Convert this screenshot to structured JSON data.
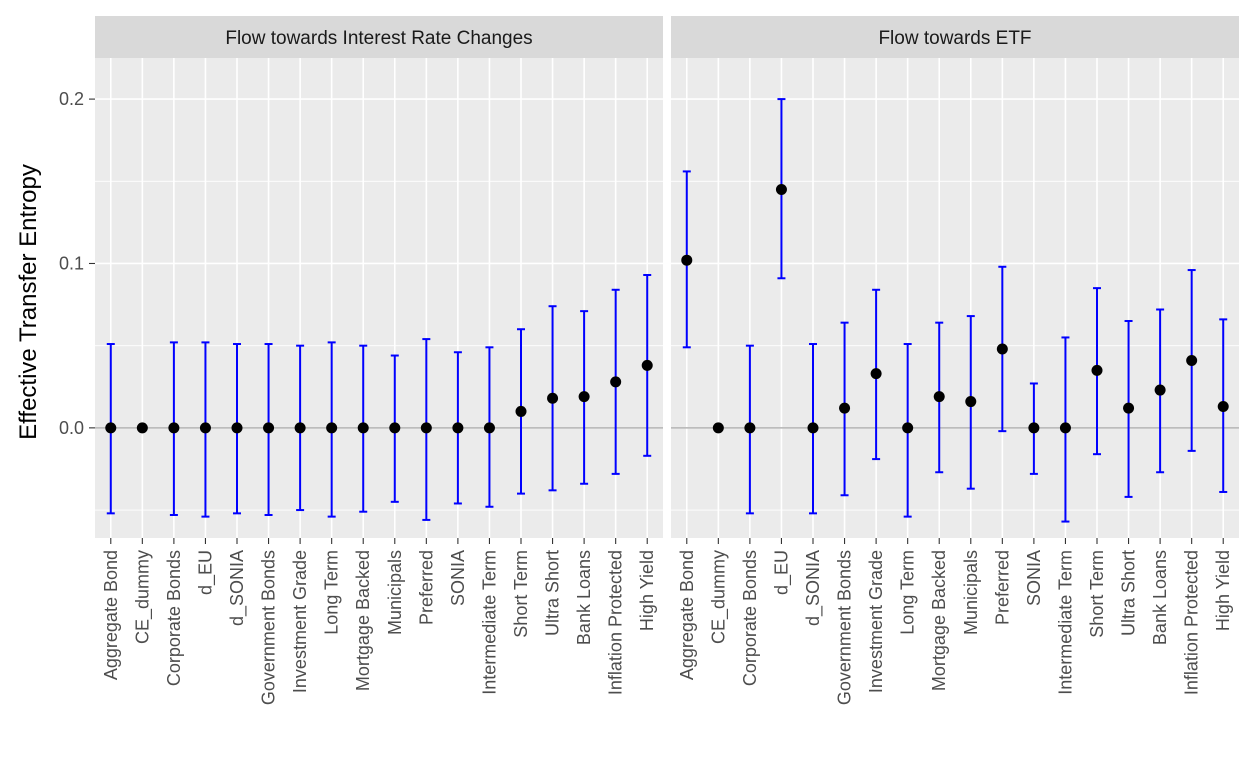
{
  "chart_data": {
    "type": "scatter",
    "ylabel": "Effective Transfer Entropy",
    "xlabel": "",
    "ylim": [
      -0.067,
      0.225
    ],
    "yticks": [
      0.0,
      0.1,
      0.2
    ],
    "ytick_labels": [
      "0.0",
      "0.1",
      "0.2"
    ],
    "grid": true,
    "colors": {
      "point": "#000000",
      "errorbar": "#0000ff",
      "zero_line": "#b3b3b3",
      "panel_bg": "#ebebeb",
      "strip_bg": "#d9d9d9"
    },
    "panels": [
      {
        "title": "Flow towards Interest Rate Changes",
        "categories": [
          "Aggregate Bond",
          "CE_dummy",
          "Corporate Bonds",
          "d_EU",
          "d_SONIA",
          "Government Bonds",
          "Investment Grade",
          "Long Term",
          "Mortgage Backed",
          "Municipals",
          "Preferred",
          "SONIA",
          "Intermediate Term",
          "Short Term",
          "Ultra Short",
          "Bank Loans",
          "Inflation Protected",
          "High Yield"
        ],
        "values": [
          0.0,
          0.0,
          0.0,
          0.0,
          0.0,
          0.0,
          0.0,
          0.0,
          0.0,
          0.0,
          0.0,
          0.0,
          0.0,
          0.01,
          0.018,
          0.019,
          0.028,
          0.038
        ],
        "lower": [
          -0.052,
          0.0,
          -0.053,
          -0.054,
          -0.052,
          -0.053,
          -0.05,
          -0.054,
          -0.051,
          -0.045,
          -0.056,
          -0.046,
          -0.048,
          -0.04,
          -0.038,
          -0.034,
          -0.028,
          -0.017
        ],
        "upper": [
          0.051,
          0.0,
          0.052,
          0.052,
          0.051,
          0.051,
          0.05,
          0.052,
          0.05,
          0.044,
          0.054,
          0.046,
          0.049,
          0.06,
          0.074,
          0.071,
          0.084,
          0.093
        ]
      },
      {
        "title": "Flow towards ETF",
        "categories": [
          "Aggregate Bond",
          "CE_dummy",
          "Corporate Bonds",
          "d_EU",
          "d_SONIA",
          "Government Bonds",
          "Investment Grade",
          "Long Term",
          "Mortgage Backed",
          "Municipals",
          "Preferred",
          "SONIA",
          "Intermediate Term",
          "Short Term",
          "Ultra Short",
          "Bank Loans",
          "Inflation Protected",
          "High Yield"
        ],
        "values": [
          0.102,
          0.0,
          0.0,
          0.145,
          0.0,
          0.012,
          0.033,
          0.0,
          0.019,
          0.016,
          0.048,
          0.0,
          0.0,
          0.035,
          0.012,
          0.023,
          0.041,
          0.013
        ],
        "lower": [
          0.049,
          0.0,
          -0.052,
          0.091,
          -0.052,
          -0.041,
          -0.019,
          -0.054,
          -0.027,
          -0.037,
          -0.002,
          -0.028,
          -0.057,
          -0.016,
          -0.042,
          -0.027,
          -0.014,
          -0.039
        ],
        "upper": [
          0.156,
          0.0,
          0.05,
          0.2,
          0.051,
          0.064,
          0.084,
          0.051,
          0.064,
          0.068,
          0.098,
          0.027,
          0.055,
          0.085,
          0.065,
          0.072,
          0.096,
          0.066
        ]
      }
    ]
  }
}
